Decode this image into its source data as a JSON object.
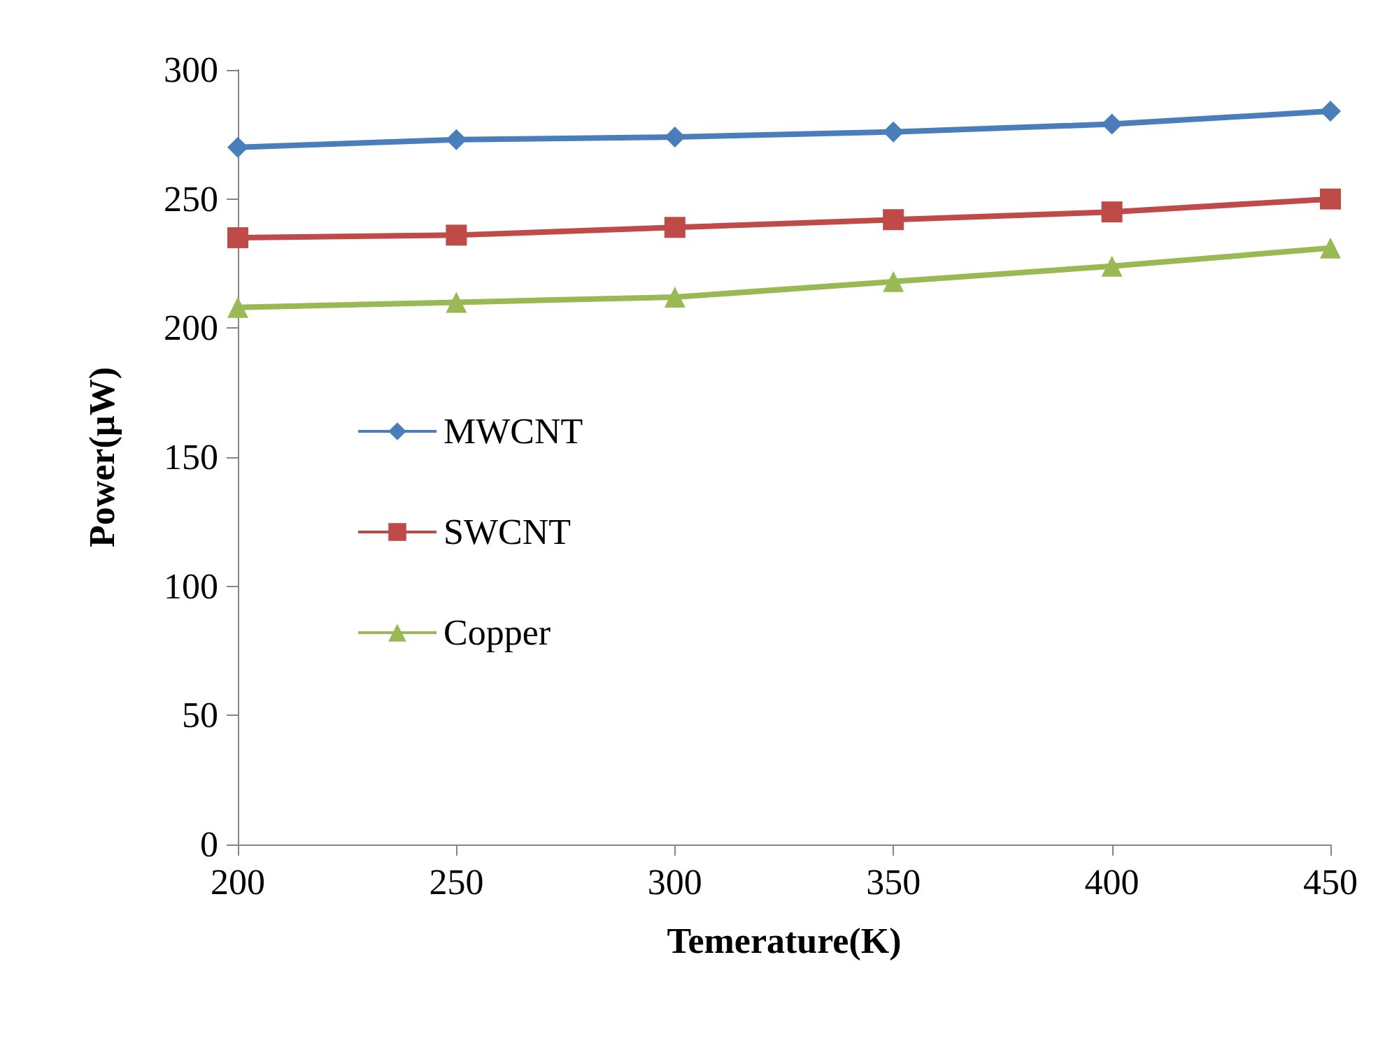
{
  "chart_data": {
    "type": "line",
    "xlabel": "Temerature(K)",
    "ylabel": "Power(µW)",
    "x": [
      200,
      250,
      300,
      350,
      400,
      450
    ],
    "series": [
      {
        "name": "MWCNT",
        "color": "#4a7ebb",
        "marker": "diamond",
        "values": [
          270,
          273,
          274,
          276,
          279,
          284
        ]
      },
      {
        "name": "SWCNT",
        "color": "#be4b48",
        "marker": "square",
        "values": [
          235,
          236,
          239,
          242,
          245,
          250
        ]
      },
      {
        "name": "Copper",
        "color": "#98b954",
        "marker": "triangle",
        "values": [
          208,
          210,
          212,
          218,
          224,
          231
        ]
      }
    ],
    "xlim": [
      200,
      450
    ],
    "xticks": [
      200,
      250,
      300,
      350,
      400,
      450
    ],
    "ylim": [
      0,
      300
    ],
    "yticks": [
      0,
      50,
      100,
      150,
      200,
      250,
      300
    ],
    "grid": false,
    "legend": "left",
    "line_style": "solid"
  }
}
